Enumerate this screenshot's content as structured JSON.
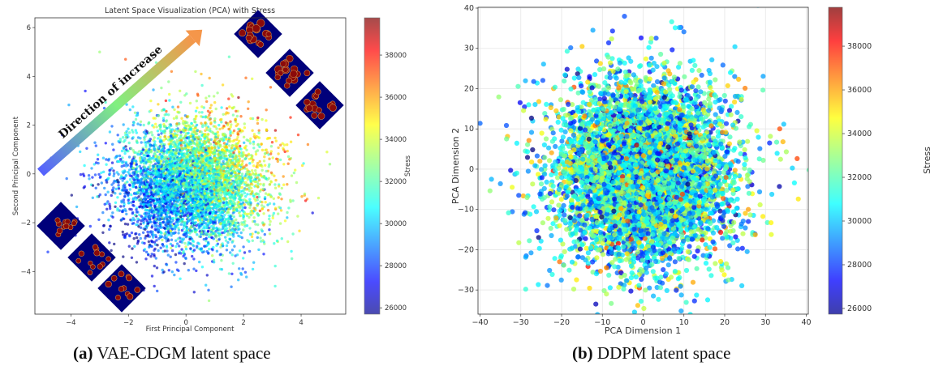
{
  "chart_data": [
    {
      "type": "scatter",
      "title": "Latent Space Visualization (PCA) with Stress",
      "xlabel": "First Principal Component",
      "ylabel": "Second Principal Component",
      "xlim": [
        -5.25,
        5.55
      ],
      "ylim": [
        -5.75,
        6.4
      ],
      "xticks": [
        -4,
        -2,
        0,
        2,
        4
      ],
      "yticks": [
        -4,
        -2,
        0,
        2,
        4,
        6
      ],
      "grid": false,
      "colorbar": {
        "label": "Stress",
        "colormap": "jet",
        "range": [
          25700,
          39770
        ],
        "ticks": [
          26000,
          28000,
          30000,
          32000,
          34000,
          36000,
          38000
        ]
      },
      "annotation": "Direction of increase",
      "sample_points": [
        [
          -4.8,
          -3.2,
          28000
        ],
        [
          -3.0,
          5.0,
          33000
        ],
        [
          -2.1,
          4.7,
          37000
        ],
        [
          -3.5,
          3.4,
          27500
        ],
        [
          -4.3,
          1.6,
          27000
        ],
        [
          0.8,
          -5.2,
          33000
        ],
        [
          3.1,
          -4.6,
          31500
        ],
        [
          4.9,
          0.9,
          34000
        ],
        [
          4.4,
          -1.6,
          27000
        ],
        [
          5.0,
          0.4,
          33000
        ],
        [
          2.5,
          2.3,
          38500
        ],
        [
          1.5,
          4.8,
          32000
        ],
        [
          -0.5,
          4.2,
          36500
        ],
        [
          -0.7,
          3.0,
          38000
        ],
        [
          2.3,
          3.9,
          34000
        ],
        [
          3.9,
          1.6,
          37500
        ],
        [
          -1.1,
          -4.6,
          27000
        ],
        [
          -1.0,
          -4.8,
          28500
        ],
        [
          2.7,
          -2.1,
          36000
        ],
        [
          3.6,
          0.6,
          36000
        ],
        [
          -0.2,
          -4.3,
          31000
        ],
        [
          1.6,
          -4.1,
          27500
        ]
      ]
    },
    {
      "type": "scatter",
      "title": "",
      "xlabel": "PCA Dimension 1",
      "ylabel": "PCA Dimension 2",
      "xlim": [
        -40.5,
        40.5
      ],
      "ylim": [
        -36,
        40.2
      ],
      "xticks": [
        -40,
        -30,
        -20,
        -10,
        0,
        10,
        20,
        30,
        40
      ],
      "yticks": [
        -30,
        -20,
        -10,
        0,
        10,
        20,
        30,
        40
      ],
      "grid": true,
      "colorbar": {
        "label": "Stress",
        "colormap": "jet",
        "range": [
          25740,
          39780
        ],
        "ticks": [
          26000,
          28000,
          30000,
          32000,
          34000,
          36000,
          38000
        ]
      },
      "sample_points": [
        [
          -37.2,
          -2.5,
          30000
        ],
        [
          -35,
          -3.6,
          29500
        ],
        [
          -32.5,
          -0.3,
          27000
        ],
        [
          -30.5,
          -6.5,
          28500
        ],
        [
          -33.5,
          7.5,
          32500
        ],
        [
          7,
          36.6,
          31500
        ],
        [
          10,
          34.1,
          29000
        ],
        [
          -7.5,
          34.3,
          28000
        ],
        [
          -0.5,
          32.6,
          27500
        ],
        [
          22.5,
          30.4,
          30500
        ],
        [
          37.1,
          -3.4,
          31000
        ],
        [
          34.3,
          6.8,
          35500
        ],
        [
          33.5,
          10.0,
          37000
        ],
        [
          31,
          6.5,
          28000
        ],
        [
          -0.5,
          -32.8,
          31500
        ],
        [
          -3,
          -30.3,
          27000
        ],
        [
          2.5,
          -31.5,
          30000
        ],
        [
          -9,
          -31,
          33500
        ],
        [
          27.5,
          -16.3,
          35500
        ],
        [
          19,
          -15.7,
          38000
        ],
        [
          25.8,
          -13,
          28000
        ],
        [
          -20.5,
          -23,
          36500
        ]
      ]
    }
  ],
  "captions": [
    {
      "label": "(a)",
      "text": "VAE-CDGM latent space"
    },
    {
      "label": "(b)",
      "text": "DDPM latent space"
    }
  ]
}
